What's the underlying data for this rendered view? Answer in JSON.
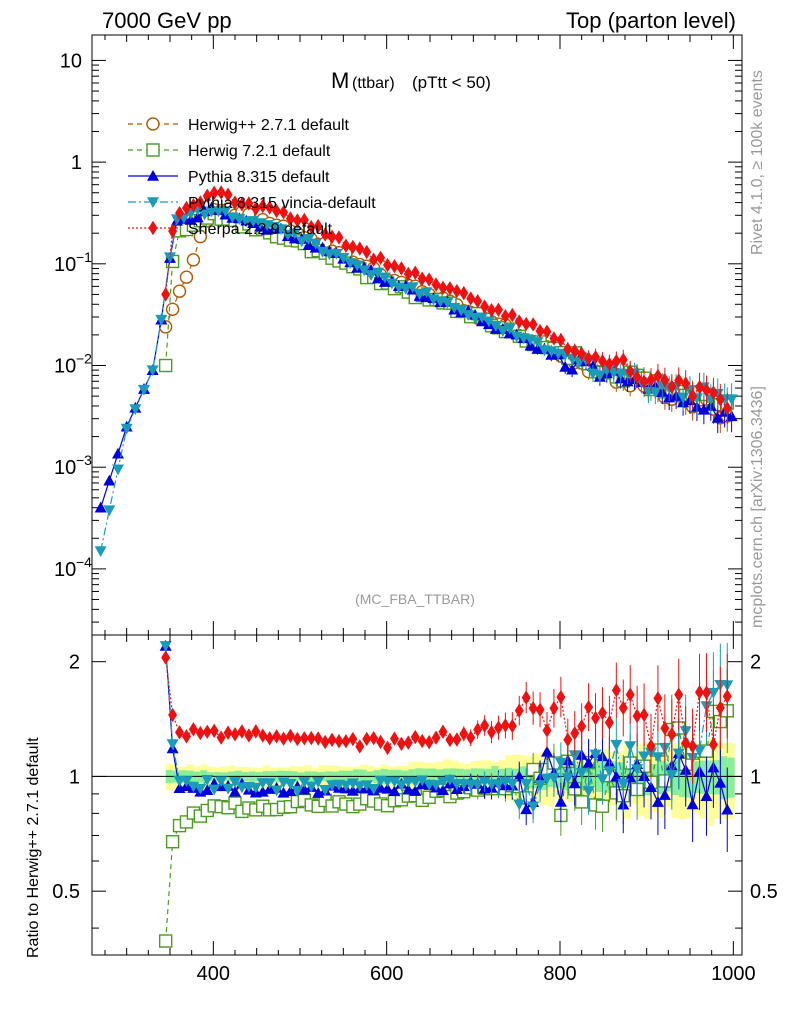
{
  "header": {
    "left_title": "7000 GeV pp",
    "right_title": "Top (parton level)"
  },
  "side_labels": {
    "rivet": "Rivet 4.1.0, ≥ 100k events",
    "mcplots": "mcplots.cern.ch [arXiv:1306.3436]"
  },
  "chart_data": {
    "type": "line",
    "title_main": "M",
    "title_sub": "(ttbar)",
    "title_cut": "(pTtt < 50)",
    "watermark": "(MC_FBA_TTBAR)",
    "xlabel": "",
    "ratio_ylabel": "Ratio to Herwig++ 2.7.1 default",
    "xlim": [
      260,
      1010
    ],
    "ylim_log10": [
      -4.65,
      1.25
    ],
    "ratio_ylim": [
      0.34,
      2.35
    ],
    "x_ticks": [
      400,
      600,
      800,
      1000
    ],
    "x_tick_labels": [
      "400",
      "600",
      "800",
      "1000"
    ],
    "main_y_tick_exponents": [
      1,
      0,
      -1,
      -2,
      -3,
      -4
    ],
    "main_y_tick_mantissa": [
      "10",
      "1",
      "10",
      "10",
      "10",
      "10"
    ],
    "main_y_tick_sup": [
      "",
      "",
      "−1",
      "−2",
      "−3",
      "−4"
    ],
    "ratio_y_ticks": [
      0.5,
      1,
      2
    ],
    "ratio_y_tick_labels": [
      "0.5",
      "1",
      "2"
    ],
    "series": [
      {
        "name": "Herwig++ 2.7.1 default",
        "color": "#b35900",
        "marker": "circle-open",
        "dash": "5,4",
        "x": [
          345,
          400,
          500,
          600,
          700,
          800,
          900,
          1000
        ],
        "y": [
          0.024,
          0.37,
          0.2,
          0.075,
          0.033,
          0.013,
          0.0065,
          0.0032
        ]
      },
      {
        "name": "Herwig 7.2.1 default",
        "color": "#4b9b1e",
        "marker": "square-open",
        "dash": "5,4",
        "x": [
          345,
          355,
          400,
          500,
          600,
          700,
          800,
          900,
          1000
        ],
        "y": [
          0.01,
          0.19,
          0.3,
          0.16,
          0.062,
          0.032,
          0.013,
          0.007,
          0.0047
        ]
      },
      {
        "name": "Pythia 8.315 default",
        "color": "#0000dd",
        "marker": "triangle-up",
        "dash": "",
        "x": [
          270,
          300,
          330,
          345,
          355,
          400,
          500,
          600,
          700,
          800,
          900,
          1000
        ],
        "y": [
          0.0004,
          0.0025,
          0.009,
          0.05,
          0.26,
          0.34,
          0.18,
          0.07,
          0.031,
          0.012,
          0.006,
          0.0029
        ]
      },
      {
        "name": "Pythia 8.315 vincia-default",
        "color": "#1a9bb8",
        "marker": "triangle-down",
        "dash": "8,3,2,3",
        "x": [
          270,
          300,
          330,
          345,
          355,
          400,
          500,
          600,
          700,
          800,
          900,
          1000
        ],
        "y": [
          0.00015,
          0.0024,
          0.009,
          0.05,
          0.27,
          0.35,
          0.18,
          0.071,
          0.032,
          0.013,
          0.0065,
          0.005
        ]
      },
      {
        "name": "Sherpa 2.2.9 default",
        "color": "#ee1111",
        "marker": "diamond",
        "dash": "2,2",
        "x": [
          345,
          355,
          400,
          500,
          600,
          700,
          800,
          900,
          1000
        ],
        "y": [
          0.05,
          0.3,
          0.5,
          0.27,
          0.1,
          0.045,
          0.018,
          0.008,
          0.004
        ]
      }
    ],
    "ratio_series": [
      {
        "name": "Herwig 7.2.1 default",
        "color": "#4b9b1e",
        "marker": "square-open",
        "dash": "5,4",
        "x": [
          345,
          355,
          400,
          500,
          600,
          700,
          800,
          900,
          1000
        ],
        "y": [
          0.37,
          0.75,
          0.82,
          0.85,
          0.85,
          0.92,
          0.95,
          1.05,
          1.48
        ]
      },
      {
        "name": "Pythia 8.315 default",
        "color": "#0000dd",
        "marker": "triangle-up",
        "dash": "",
        "x": [
          345,
          355,
          400,
          500,
          600,
          700,
          800,
          900,
          1000
        ],
        "y": [
          2.2,
          0.93,
          0.93,
          0.93,
          0.93,
          0.95,
          1.0,
          1.02,
          0.93
        ]
      },
      {
        "name": "Pythia 8.315 vincia-default",
        "color": "#1a9bb8",
        "marker": "triangle-down",
        "dash": "8,3,2,3",
        "x": [
          345,
          355,
          400,
          500,
          600,
          700,
          800,
          900,
          1000
        ],
        "y": [
          2.2,
          0.97,
          0.95,
          0.94,
          0.95,
          0.97,
          1.0,
          1.05,
          1.6
        ]
      },
      {
        "name": "Sherpa 2.2.9 default",
        "color": "#ee1111",
        "marker": "diamond",
        "dash": "2,2",
        "x": [
          345,
          355,
          400,
          500,
          600,
          700,
          800,
          900,
          1000
        ],
        "y": [
          2.05,
          1.3,
          1.3,
          1.25,
          1.22,
          1.3,
          1.5,
          1.4,
          1.45
        ]
      }
    ],
    "band_colors": {
      "outer": "#ffff99",
      "inner": "#88ee99"
    },
    "uncertainty_band": {
      "x": [
        345,
        400,
        500,
        600,
        700,
        800,
        900,
        1000
      ],
      "outer_half_width": [
        0.08,
        0.06,
        0.06,
        0.07,
        0.1,
        0.15,
        0.2,
        0.25
      ],
      "inner_half_width": [
        0.04,
        0.03,
        0.03,
        0.04,
        0.05,
        0.07,
        0.09,
        0.12
      ]
    }
  }
}
